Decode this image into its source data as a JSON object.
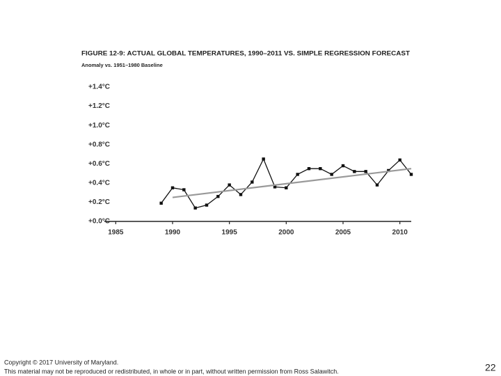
{
  "chart_data": {
    "type": "line",
    "title": "FIGURE 12-9: ACTUAL GLOBAL TEMPERATURES, 1990–2011 VS. SIMPLE REGRESSION FORECAST",
    "subtitle": "Anomaly vs. 1951–1980 Baseline",
    "xlim": [
      1984,
      2011
    ],
    "xticks": [
      1985,
      1990,
      1995,
      2000,
      2005,
      2010
    ],
    "ylim": [
      0,
      1.4
    ],
    "yticks": [
      {
        "value": 0,
        "label": "+0.0°C"
      },
      {
        "value": 0.2,
        "label": "+0.2°C"
      },
      {
        "value": 0.4,
        "label": "+0.4°C"
      },
      {
        "value": 0.6,
        "label": "+0.6°C"
      },
      {
        "value": 0.8,
        "label": "+0.8°C"
      },
      {
        "value": 1.0,
        "label": "+1.0°C"
      },
      {
        "value": 1.2,
        "label": "+1.2°C"
      },
      {
        "value": 1.4,
        "label": "+1.4°C"
      }
    ],
    "series": [
      {
        "color": "#111111",
        "markers": true,
        "x": [
          1989,
          1990,
          1991,
          1992,
          1993,
          1994,
          1995,
          1996,
          1997,
          1998,
          1999,
          2000,
          2001,
          2002,
          2003,
          2004,
          2005,
          2006,
          2007,
          2008,
          2009,
          2010,
          2011
        ],
        "values": [
          0.19,
          0.35,
          0.33,
          0.14,
          0.17,
          0.26,
          0.38,
          0.28,
          0.41,
          0.65,
          0.36,
          0.35,
          0.49,
          0.55,
          0.55,
          0.49,
          0.58,
          0.52,
          0.52,
          0.38,
          0.53,
          0.64,
          0.49
        ]
      },
      {
        "color": "#999999",
        "markers": false,
        "x": [
          1990,
          2011
        ],
        "values": [
          0.25,
          0.55
        ]
      }
    ]
  },
  "footer": {
    "copyright": "Copyright © 2017 University of Maryland.",
    "notice": "This material may not be reproduced or redistributed, in whole or in part, without written permission from Ross Salawitch.",
    "page_number": "22"
  }
}
